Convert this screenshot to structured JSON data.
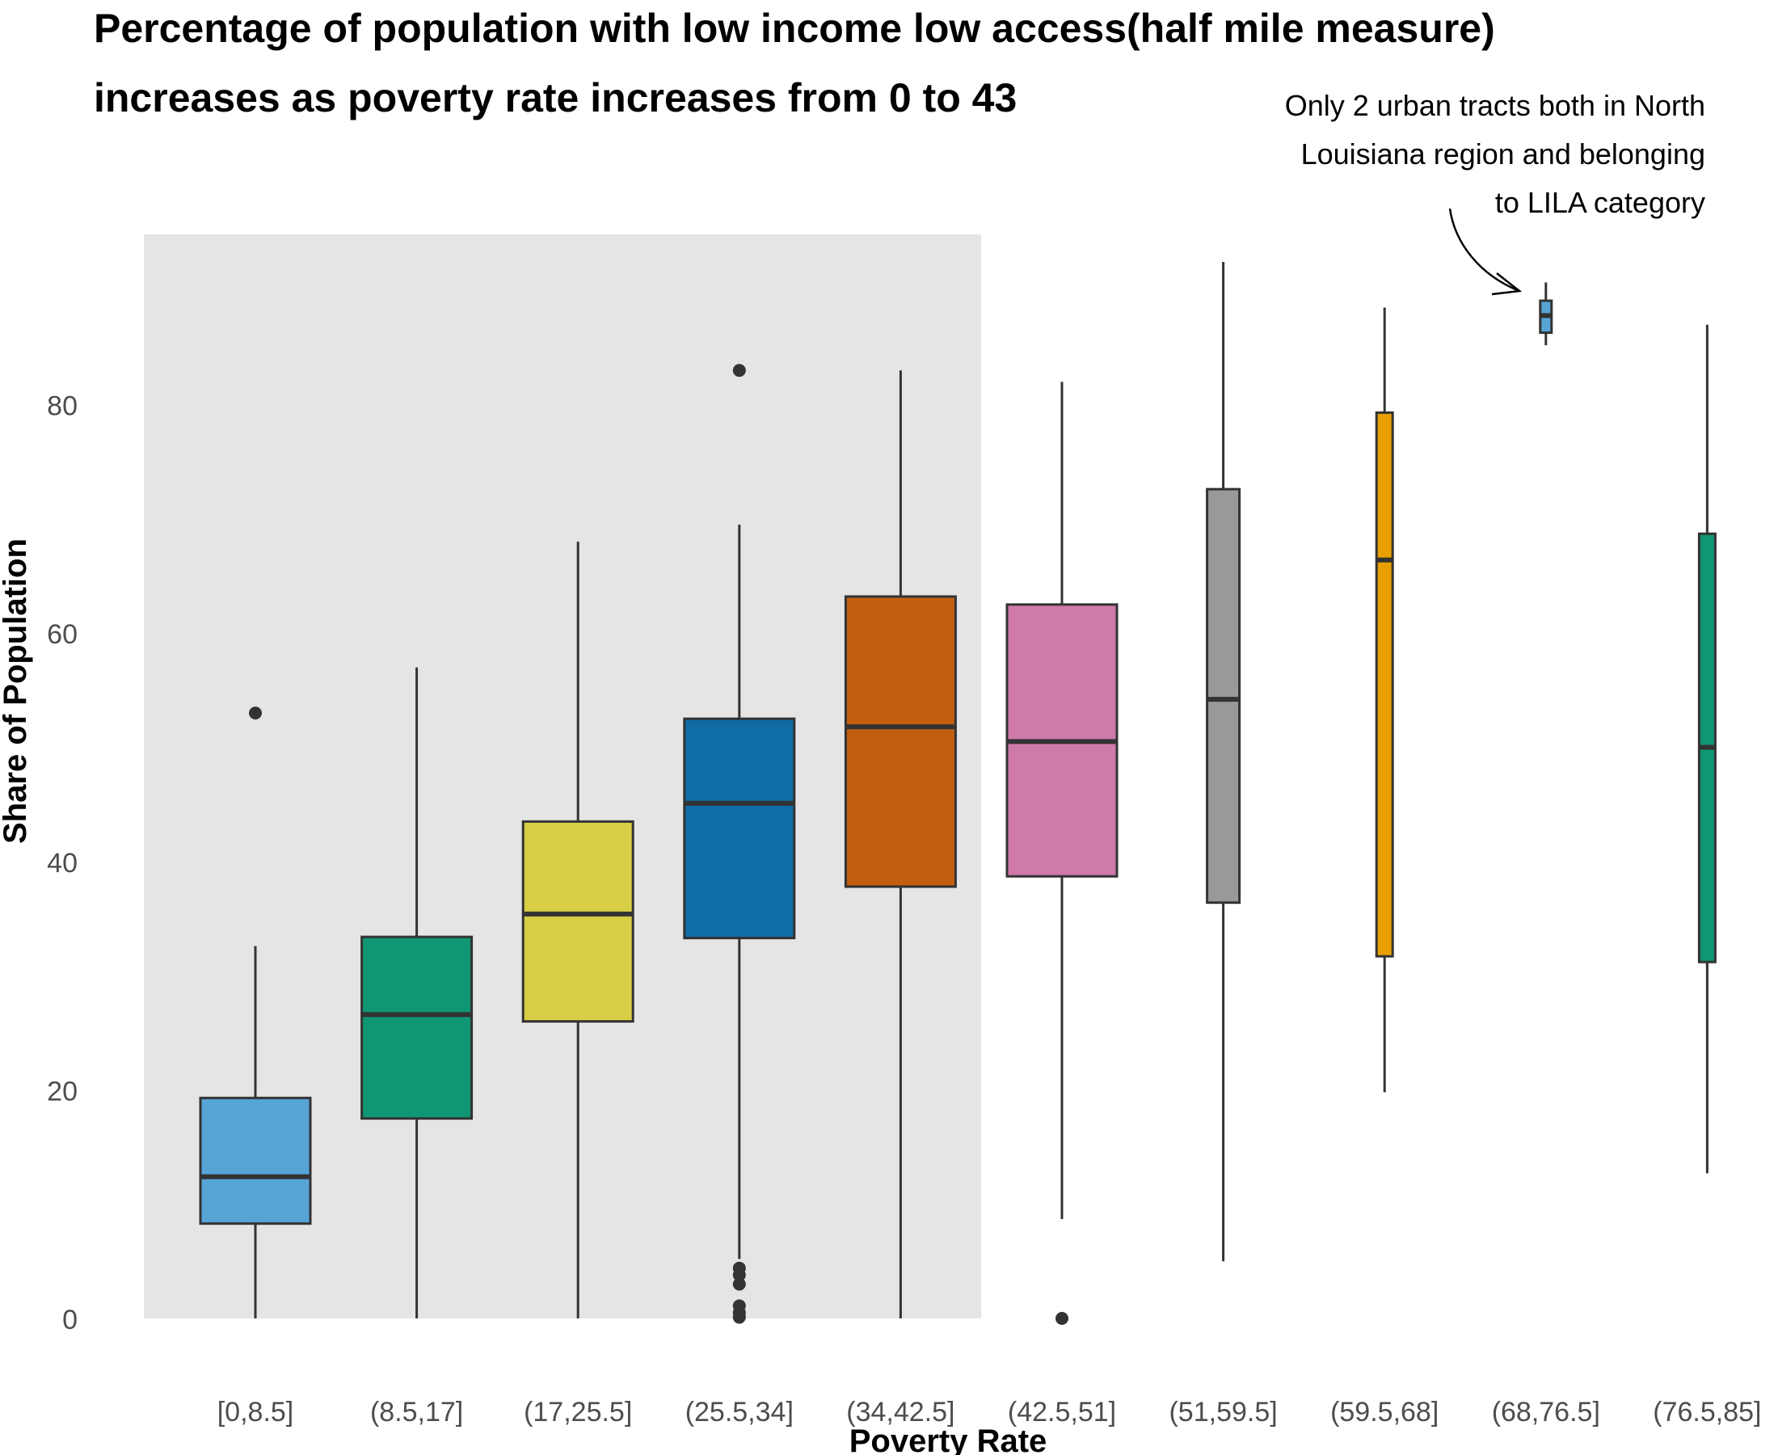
{
  "chart_data": {
    "type": "boxplot",
    "title": {
      "lines": [
        "Percentage of population with low income low access(half mile measure)",
        "increases as poverty rate increases from 0 to 43"
      ]
    },
    "xlabel": "Poverty Rate",
    "ylabel": "Share of Population",
    "ylim": [
      0,
      95
    ],
    "yticks": [
      0,
      20,
      40,
      60,
      80
    ],
    "grid": false,
    "highlight_region": {
      "from_category": "[0,8.5]",
      "to_category": "(34,42.5]",
      "color": "#e5e5e5"
    },
    "categories": [
      "[0,8.5]",
      "(8.5,17]",
      "(17,25.5]",
      "(25.5,34]",
      "(34,42.5]",
      "(42.5,51]",
      "(51,59.5]",
      "(59.5,68]",
      "(68,76.5]",
      "(76.5,85]"
    ],
    "boxes": [
      {
        "category": "[0,8.5]",
        "color": "#56A5D6",
        "whisker_low": 0,
        "q1": 8.3,
        "median": 12.4,
        "q3": 19.3,
        "whisker_high": 32.6,
        "outliers": [
          53.0
        ]
      },
      {
        "category": "(8.5,17]",
        "color": "#109673",
        "whisker_low": 0,
        "q1": 17.5,
        "median": 26.6,
        "q3": 33.4,
        "whisker_high": 57.0,
        "outliers": []
      },
      {
        "category": "(17,25.5]",
        "color": "#D8CF46",
        "whisker_low": 0,
        "q1": 26.0,
        "median": 35.4,
        "q3": 43.5,
        "whisker_high": 68.0,
        "outliers": []
      },
      {
        "category": "(25.5,34]",
        "color": "#0F6CA5",
        "whisker_low": 5.2,
        "q1": 33.3,
        "median": 45.1,
        "q3": 52.5,
        "whisker_high": 69.5,
        "outliers": [
          83.0,
          4.4,
          3.8,
          3.0,
          1.1,
          0.5,
          0.1
        ]
      },
      {
        "category": "(34,42.5]",
        "color": "#C35E10",
        "whisker_low": 0,
        "q1": 37.8,
        "median": 51.8,
        "q3": 63.2,
        "whisker_high": 83.0,
        "outliers": []
      },
      {
        "category": "(42.5,51]",
        "color": "#CF7AA8",
        "whisker_low": 8.7,
        "q1": 38.7,
        "median": 50.5,
        "q3": 62.5,
        "whisker_high": 82.0,
        "outliers": [
          0.0
        ]
      },
      {
        "category": "(51,59.5]",
        "color": "#999999",
        "whisker_low": 5.0,
        "q1": 36.4,
        "median": 54.2,
        "q3": 72.6,
        "whisker_high": 92.5,
        "outliers": []
      },
      {
        "category": "(59.5,68]",
        "color": "#E89F00",
        "whisker_low": 19.8,
        "q1": 31.7,
        "median": 66.4,
        "q3": 79.3,
        "whisker_high": 88.5,
        "outliers": []
      },
      {
        "category": "(68,76.5]",
        "color": "#56A5D6",
        "whisker_low": 85.2,
        "q1": 86.3,
        "median": 87.8,
        "q3": 89.1,
        "whisker_high": 90.7,
        "outliers": []
      },
      {
        "category": "(76.5,85]",
        "color": "#109673",
        "whisker_low": 12.7,
        "q1": 31.2,
        "median": 50.0,
        "q3": 68.7,
        "whisker_high": 87.0,
        "outliers": []
      }
    ],
    "annotation": {
      "lines": [
        "Only 2 urban tracts both in North",
        "Louisiana region and belonging",
        "to LILA category"
      ],
      "target_category": "(68,76.5]"
    }
  }
}
